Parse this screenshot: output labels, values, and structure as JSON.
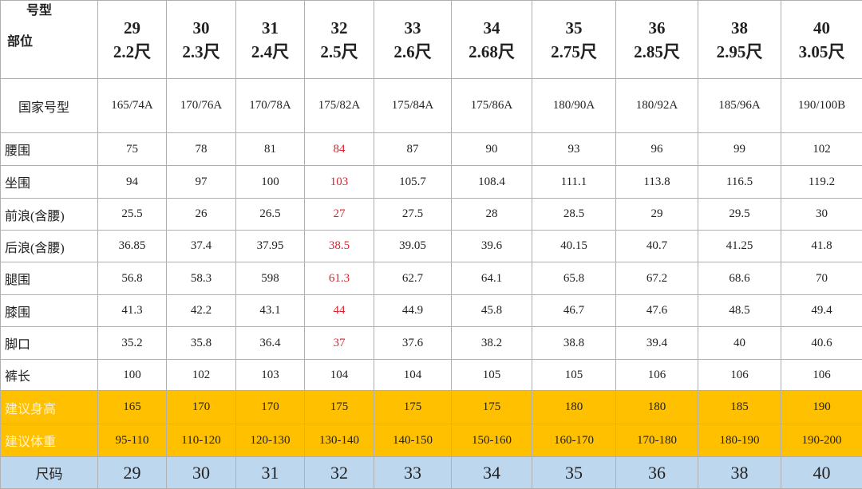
{
  "header": {
    "corner_top": "号型",
    "corner_bottom": "部位",
    "columns": [
      {
        "size": "29",
        "chi": "2.2尺"
      },
      {
        "size": "30",
        "chi": "2.3尺"
      },
      {
        "size": "31",
        "chi": "2.4尺"
      },
      {
        "size": "32",
        "chi": "2.5尺"
      },
      {
        "size": "33",
        "chi": "2.6尺"
      },
      {
        "size": "34",
        "chi": "2.68尺"
      },
      {
        "size": "35",
        "chi": "2.75尺"
      },
      {
        "size": "36",
        "chi": "2.85尺"
      },
      {
        "size": "38",
        "chi": "2.95尺"
      },
      {
        "size": "40",
        "chi": "3.05尺"
      }
    ]
  },
  "rows": [
    {
      "label": "国家号型",
      "cells": [
        "165/74A",
        "170/76A",
        "170/78A",
        "175/82A",
        "175/84A",
        "175/86A",
        "180/90A",
        "180/92A",
        "185/96A",
        "190/100B"
      ]
    },
    {
      "label": "腰围",
      "cells": [
        "75",
        "78",
        "81",
        "84",
        "87",
        "90",
        "93",
        "96",
        "99",
        "102"
      ]
    },
    {
      "label": "坐围",
      "cells": [
        "94",
        "97",
        "100",
        "103",
        "105.7",
        "108.4",
        "111.1",
        "113.8",
        "116.5",
        "119.2"
      ]
    },
    {
      "label": "前浪(含腰)",
      "cells": [
        "25.5",
        "26",
        "26.5",
        "27",
        "27.5",
        "28",
        "28.5",
        "29",
        "29.5",
        "30"
      ]
    },
    {
      "label": "后浪(含腰)",
      "cells": [
        "36.85",
        "37.4",
        "37.95",
        "38.5",
        "39.05",
        "39.6",
        "40.15",
        "40.7",
        "41.25",
        "41.8"
      ]
    },
    {
      "label": "腿围",
      "cells": [
        "56.8",
        "58.3",
        "598",
        "61.3",
        "62.7",
        "64.1",
        "65.8",
        "67.2",
        "68.6",
        "70"
      ]
    },
    {
      "label": "膝围",
      "cells": [
        "41.3",
        "42.2",
        "43.1",
        "44",
        "44.9",
        "45.8",
        "46.7",
        "47.6",
        "48.5",
        "49.4"
      ]
    },
    {
      "label": "脚口",
      "cells": [
        "35.2",
        "35.8",
        "36.4",
        "37",
        "37.6",
        "38.2",
        "38.8",
        "39.4",
        "40",
        "40.6"
      ]
    },
    {
      "label": "裤长",
      "cells": [
        "100",
        "102",
        "103",
        "104",
        "104",
        "105",
        "105",
        "106",
        "106",
        "106"
      ]
    },
    {
      "label": "建议身高",
      "cells": [
        "165",
        "170",
        "170",
        "175",
        "175",
        "175",
        "180",
        "180",
        "185",
        "190"
      ]
    },
    {
      "label": "建议体重",
      "cells": [
        "95-110",
        "110-120",
        "120-130",
        "130-140",
        "140-150",
        "150-160",
        "160-170",
        "170-180",
        "180-190",
        "190-200"
      ]
    },
    {
      "label": "尺码",
      "cells": [
        "29",
        "30",
        "31",
        "32",
        "33",
        "34",
        "35",
        "36",
        "38",
        "40"
      ]
    }
  ]
}
